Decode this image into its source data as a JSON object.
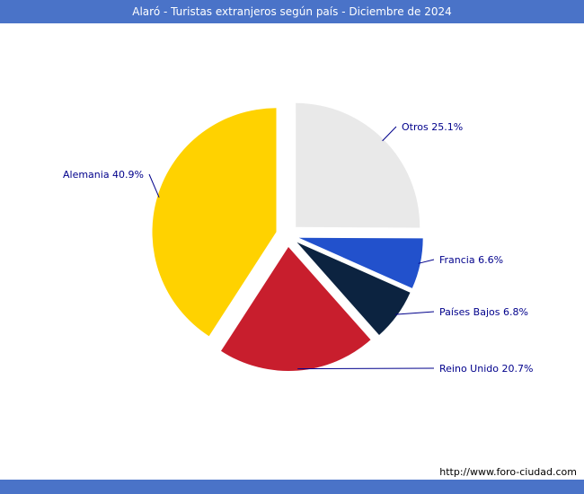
{
  "header": {
    "title": "Alaró - Turistas extranjeros según país - Diciembre de 2024"
  },
  "footer": {
    "url": "http://www.foro-ciudad.com"
  },
  "colors": {
    "frame": "#4a73c8",
    "title_text": "#ffffff",
    "label_text": "#00008b",
    "url_text": "#000000",
    "background": "#ffffff"
  },
  "chart_data": {
    "type": "pie",
    "title": "Alaró - Turistas extranjeros según país - Diciembre de 2024",
    "unit": "%",
    "start_angle_deg": 0,
    "direction": "clockwise",
    "legend": "none",
    "exploded": true,
    "slices": [
      {
        "label": "Otros",
        "value": 25.1,
        "color": "#e9e9e9"
      },
      {
        "label": "Francia",
        "value": 6.6,
        "color": "#2251cc"
      },
      {
        "label": "Países Bajos",
        "value": 6.8,
        "color": "#0c2340"
      },
      {
        "label": "Reino Unido",
        "value": 20.7,
        "color": "#c81e2d"
      },
      {
        "label": "Alemania",
        "value": 40.9,
        "color": "#ffd200"
      }
    ]
  }
}
